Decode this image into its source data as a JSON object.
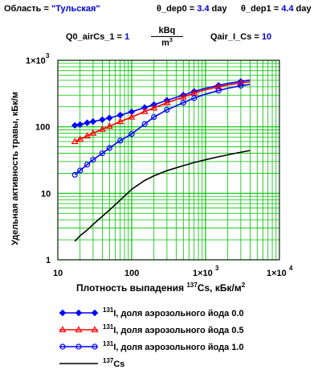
{
  "header": {
    "region_label": "Область",
    "region_eq": "=",
    "region_value": "\"Тульская\"",
    "dep0_label": "θ_dep0",
    "dep0_eq": "=",
    "dep0_value": "3.4",
    "dep0_unit": "day",
    "dep1_label": "θ_dep1",
    "dep1_eq": "=",
    "dep1_value": "4.4",
    "dep1_unit": "day",
    "q0_label": "Q0_airCs_1",
    "q0_eq": "=",
    "q0_value": "1",
    "q0_unit_num": "kBq",
    "q0_unit_den": "m",
    "q0_unit_den_exp": "3",
    "qair_label": "Qair_I_Cs",
    "qair_eq": "=",
    "qair_value": "10"
  },
  "colors": {
    "grid": "#00c000",
    "series_0": "#0000ff",
    "series_05": "#ff0000",
    "series_10": "#0000ff",
    "series_cs": "#000000"
  },
  "chart_data": {
    "type": "line",
    "xscale": "log",
    "yscale": "log",
    "xlim": [
      10,
      10000
    ],
    "ylim": [
      1,
      1000
    ],
    "grid": true,
    "xlabel_main": "Плотность выпадения",
    "xlabel_sup": "137",
    "xlabel_rest": "Cs, кБк/м",
    "xlabel_exp": "2",
    "ylabel": "Удельная активность травы, кБк/м",
    "ytick_labels": [
      "1×10",
      "3",
      "100",
      "10",
      "1"
    ],
    "xtick_labels": [
      "10",
      "100",
      "1×10",
      "3",
      "1×10",
      "4"
    ],
    "x": [
      17,
      20,
      25,
      30,
      40,
      50,
      70,
      100,
      150,
      200,
      300,
      500,
      700,
      1000,
      1500,
      2000,
      3000,
      4000
    ],
    "series": [
      {
        "name_sup": "131",
        "name": "I, доля аэрозольного йода  0.0",
        "marker": "diamond",
        "values": [
          105,
          108,
          115,
          120,
          128,
          136,
          150,
          168,
          195,
          215,
          250,
          300,
          340,
          380,
          420,
          450,
          480,
          505
        ]
      },
      {
        "name_sup": "131",
        "name": "I, доля аэрозольного йода  0.5",
        "marker": "triangle",
        "values": [
          60,
          65,
          73,
          80,
          92,
          102,
          120,
          140,
          170,
          192,
          230,
          280,
          320,
          360,
          400,
          425,
          455,
          475
        ]
      },
      {
        "name_sup": "131",
        "name": "I, доля аэрозольного йода  1.0",
        "marker": "circle",
        "values": [
          19,
          22,
          27,
          32,
          40,
          48,
          62,
          78,
          110,
          140,
          180,
          230,
          270,
          310,
          350,
          380,
          415,
          435
        ]
      },
      {
        "name_sup": "137",
        "name": "Cs",
        "marker": "none",
        "values": [
          1.9,
          2.3,
          2.8,
          3.4,
          4.5,
          5.6,
          7.9,
          11.5,
          15.6,
          18.3,
          21.9,
          26,
          29,
          32,
          35.5,
          37.9,
          41.5,
          44
        ]
      }
    ]
  }
}
